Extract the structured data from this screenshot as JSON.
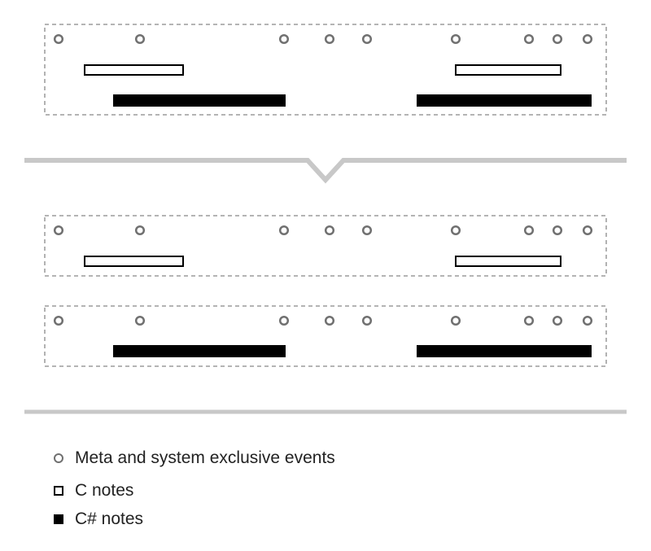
{
  "colors": {
    "separator": "#c8c8c8",
    "box_border": "#888888",
    "event_circle": "#707070",
    "note": "#000000",
    "background": "#ffffff"
  },
  "icons": {
    "event": "hollow-circle-icon",
    "c_note": "hollow-rectangle-icon",
    "c_sharp_note": "filled-rectangle-icon",
    "split": "chevron-down-icon"
  },
  "tracks": {
    "original": {
      "events": true,
      "c_notes": true,
      "c_sharp_notes": true
    },
    "split_c": {
      "events": true,
      "c_notes": true,
      "c_sharp_notes": false
    },
    "split_c_sharp": {
      "events": true,
      "c_notes": false,
      "c_sharp_notes": true
    }
  },
  "legend": [
    {
      "symbol": "event-circle",
      "label": "Meta and system exclusive events"
    },
    {
      "symbol": "c-note",
      "label": "C notes"
    },
    {
      "symbol": "c-sharp-note",
      "label": "C# notes"
    }
  ]
}
